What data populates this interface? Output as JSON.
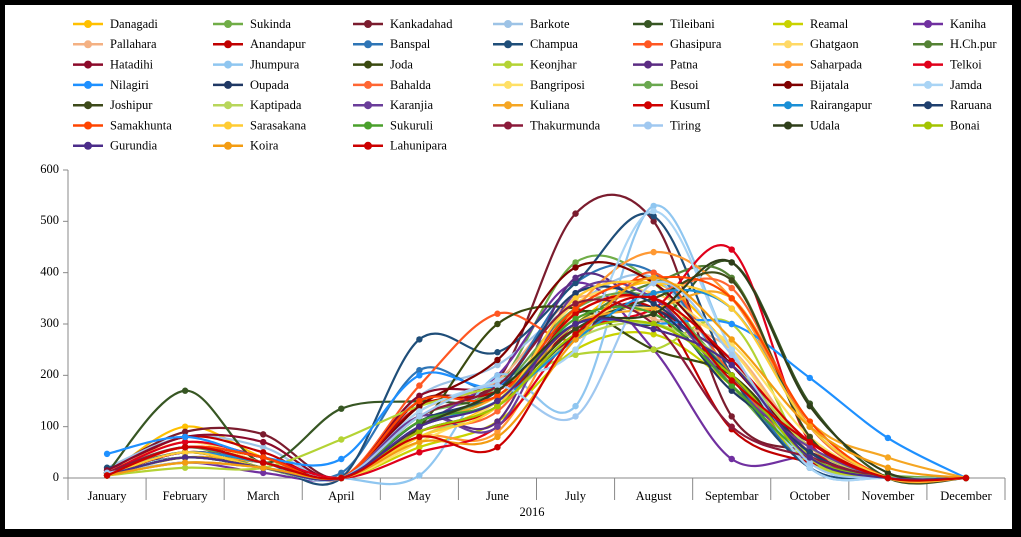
{
  "chart_data": {
    "type": "line",
    "x_label": "2016",
    "categories": [
      "January",
      "February",
      "March",
      "April",
      "May",
      "June",
      "July",
      "August",
      "Septembar",
      "October",
      "November",
      "December"
    ],
    "ylim": [
      0,
      600
    ],
    "yticks": [
      0,
      100,
      200,
      300,
      400,
      500,
      600
    ],
    "grid": false,
    "smooth": true,
    "series": [
      {
        "name": "Danagadi",
        "color": "#ffc000",
        "values": [
          5,
          100,
          40,
          0,
          80,
          150,
          300,
          380,
          250,
          60,
          0,
          0
        ]
      },
      {
        "name": "Sukinda",
        "color": "#70ad47",
        "values": [
          10,
          60,
          20,
          0,
          120,
          180,
          420,
          380,
          180,
          30,
          5,
          0
        ]
      },
      {
        "name": "Kankadahad",
        "color": "#7b1c2e",
        "values": [
          15,
          90,
          85,
          0,
          150,
          190,
          515,
          500,
          120,
          50,
          0,
          0
        ]
      },
      {
        "name": "Barkote",
        "color": "#9dc3e6",
        "values": [
          20,
          80,
          60,
          0,
          160,
          220,
          340,
          390,
          200,
          40,
          0,
          0
        ]
      },
      {
        "name": "Tileibani",
        "color": "#375623",
        "values": [
          10,
          170,
          30,
          135,
          150,
          160,
          320,
          300,
          420,
          145,
          0,
          0
        ]
      },
      {
        "name": "Reamal",
        "color": "#c9d200",
        "values": [
          5,
          50,
          20,
          0,
          60,
          110,
          250,
          280,
          180,
          30,
          0,
          0
        ]
      },
      {
        "name": "Kaniha",
        "color": "#7030a0",
        "values": [
          5,
          30,
          10,
          0,
          100,
          200,
          380,
          250,
          37,
          40,
          0,
          0
        ]
      },
      {
        "name": "Pallahara",
        "color": "#f4b183",
        "values": [
          10,
          70,
          30,
          0,
          130,
          190,
          350,
          310,
          250,
          60,
          0,
          0
        ]
      },
      {
        "name": "Anandapur",
        "color": "#c00000",
        "values": [
          5,
          80,
          50,
          0,
          140,
          170,
          290,
          330,
          95,
          30,
          0,
          0
        ]
      },
      {
        "name": "Banspal",
        "color": "#2e75b6",
        "values": [
          10,
          60,
          30,
          10,
          210,
          180,
          380,
          400,
          200,
          20,
          0,
          0
        ]
      },
      {
        "name": "Champua",
        "color": "#1f4e79",
        "values": [
          20,
          40,
          30,
          0,
          270,
          245,
          380,
          510,
          200,
          20,
          0,
          0
        ]
      },
      {
        "name": "Ghasipura",
        "color": "#ff5722",
        "values": [
          10,
          60,
          40,
          0,
          180,
          320,
          270,
          400,
          200,
          40,
          0,
          0
        ]
      },
      {
        "name": "Ghatgaon",
        "color": "#ffd966",
        "values": [
          10,
          70,
          30,
          0,
          80,
          150,
          340,
          360,
          250,
          50,
          0,
          0
        ]
      },
      {
        "name": "H.Ch.pur",
        "color": "#548235",
        "values": [
          5,
          40,
          20,
          0,
          110,
          160,
          300,
          380,
          390,
          80,
          0,
          0
        ]
      },
      {
        "name": "Hatadihi",
        "color": "#8b0a2a",
        "values": [
          15,
          80,
          70,
          0,
          160,
          180,
          290,
          330,
          200,
          60,
          0,
          0
        ]
      },
      {
        "name": "Jhumpura",
        "color": "#8fc6f0",
        "values": [
          10,
          40,
          20,
          0,
          5,
          200,
          140,
          530,
          250,
          20,
          0,
          0
        ]
      },
      {
        "name": "Joda",
        "color": "#3a4a10",
        "values": [
          10,
          50,
          20,
          0,
          100,
          300,
          330,
          250,
          200,
          50,
          0,
          0
        ]
      },
      {
        "name": "Keonjhar",
        "color": "#b4d334",
        "values": [
          5,
          20,
          20,
          75,
          140,
          180,
          240,
          250,
          300,
          40,
          0,
          0
        ]
      },
      {
        "name": "Patna",
        "color": "#5b2c83",
        "values": [
          5,
          60,
          30,
          0,
          120,
          110,
          390,
          320,
          230,
          50,
          0,
          0
        ]
      },
      {
        "name": "Saharpada",
        "color": "#ff9933",
        "values": [
          5,
          30,
          20,
          0,
          80,
          90,
          330,
          440,
          350,
          100,
          0,
          0
        ]
      },
      {
        "name": "Telkoi",
        "color": "#e0001b",
        "values": [
          10,
          70,
          40,
          0,
          50,
          100,
          280,
          330,
          445,
          70,
          0,
          0
        ]
      },
      {
        "name": "Nilagiri",
        "color": "#1e90ff",
        "values": [
          47,
          80,
          40,
          37,
          200,
          180,
          300,
          300,
          300,
          195,
          78,
          0
        ]
      },
      {
        "name": "Oupada",
        "color": "#1f3864",
        "values": [
          10,
          50,
          30,
          0,
          90,
          140,
          280,
          330,
          170,
          70,
          0,
          0
        ]
      },
      {
        "name": "Bahalda",
        "color": "#ff6633",
        "values": [
          5,
          40,
          20,
          0,
          90,
          130,
          320,
          360,
          370,
          100,
          0,
          0
        ]
      },
      {
        "name": "Bangriposi",
        "color": "#ffe066",
        "values": [
          5,
          30,
          20,
          0,
          70,
          150,
          300,
          330,
          260,
          80,
          0,
          0
        ]
      },
      {
        "name": "Besoi",
        "color": "#6aa84f",
        "values": [
          5,
          40,
          20,
          0,
          100,
          170,
          330,
          350,
          200,
          40,
          0,
          0
        ]
      },
      {
        "name": "Bijatala",
        "color": "#7f0000",
        "values": [
          10,
          60,
          40,
          0,
          140,
          230,
          410,
          380,
          220,
          60,
          0,
          0
        ]
      },
      {
        "name": "Jamda",
        "color": "#a9d4f5",
        "values": [
          10,
          40,
          20,
          0,
          130,
          190,
          250,
          520,
          250,
          20,
          0,
          0
        ]
      },
      {
        "name": "Joshipur",
        "color": "#3d4a1a",
        "values": [
          5,
          50,
          30,
          0,
          100,
          150,
          290,
          350,
          385,
          80,
          0,
          0
        ]
      },
      {
        "name": "Kaptipada",
        "color": "#b8d65b",
        "values": [
          5,
          30,
          20,
          0,
          80,
          140,
          270,
          300,
          220,
          60,
          0,
          0
        ]
      },
      {
        "name": "Karanjia",
        "color": "#6a3d9a",
        "values": [
          5,
          50,
          30,
          0,
          120,
          100,
          360,
          350,
          180,
          60,
          0,
          0
        ]
      },
      {
        "name": "Kuliana",
        "color": "#f5a623",
        "values": [
          5,
          40,
          30,
          0,
          100,
          160,
          300,
          330,
          350,
          110,
          40,
          0
        ]
      },
      {
        "name": "KusumI",
        "color": "#d00000",
        "values": [
          5,
          50,
          30,
          0,
          90,
          140,
          320,
          350,
          230,
          70,
          0,
          0
        ]
      },
      {
        "name": "Rairangapur",
        "color": "#1a8fd6",
        "values": [
          10,
          50,
          30,
          0,
          100,
          150,
          270,
          360,
          330,
          100,
          0,
          0
        ]
      },
      {
        "name": "Raruana",
        "color": "#1f3f6e",
        "values": [
          5,
          40,
          20,
          0,
          110,
          170,
          360,
          340,
          200,
          50,
          0,
          0
        ]
      },
      {
        "name": "Samakhunta",
        "color": "#ff4500",
        "values": [
          5,
          60,
          40,
          0,
          150,
          160,
          330,
          390,
          350,
          110,
          0,
          0
        ]
      },
      {
        "name": "Sarasakana",
        "color": "#ffcc33",
        "values": [
          5,
          50,
          20,
          0,
          80,
          140,
          350,
          380,
          330,
          100,
          0,
          0
        ]
      },
      {
        "name": "Sukuruli",
        "color": "#4aa02c",
        "values": [
          5,
          40,
          20,
          0,
          110,
          150,
          310,
          320,
          180,
          40,
          0,
          0
        ]
      },
      {
        "name": "Thakurmunda",
        "color": "#8b1a3a",
        "values": [
          10,
          60,
          30,
          0,
          120,
          180,
          340,
          300,
          100,
          40,
          0,
          0
        ]
      },
      {
        "name": "Tiring",
        "color": "#a0c8f0",
        "values": [
          10,
          30,
          20,
          0,
          120,
          180,
          120,
          380,
          240,
          30,
          0,
          0
        ]
      },
      {
        "name": "Udala",
        "color": "#2f3f1a",
        "values": [
          5,
          40,
          20,
          0,
          100,
          170,
          300,
          320,
          420,
          140,
          10,
          0
        ]
      },
      {
        "name": "Bonai",
        "color": "#a3c400",
        "values": [
          5,
          40,
          20,
          0,
          90,
          140,
          280,
          300,
          200,
          40,
          0,
          0
        ]
      },
      {
        "name": "Gurundia",
        "color": "#4b2c8a",
        "values": [
          5,
          40,
          20,
          0,
          100,
          150,
          300,
          290,
          220,
          40,
          0,
          0
        ]
      },
      {
        "name": "Koira",
        "color": "#f39c12",
        "values": [
          5,
          30,
          20,
          0,
          70,
          80,
          270,
          390,
          270,
          100,
          20,
          0
        ]
      },
      {
        "name": "Lahunipara",
        "color": "#cc0000",
        "values": [
          5,
          60,
          30,
          0,
          80,
          60,
          280,
          350,
          190,
          70,
          0,
          0
        ]
      }
    ]
  }
}
